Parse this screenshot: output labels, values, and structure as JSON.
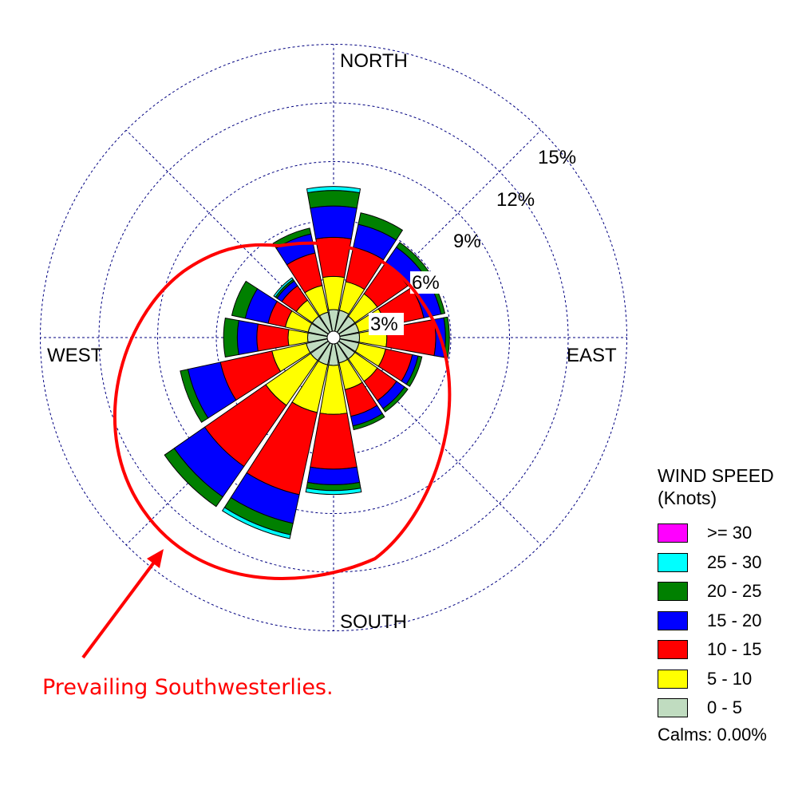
{
  "chart_data": {
    "type": "wind-rose (polar stacked bar)",
    "title": "",
    "directions": [
      "N",
      "NNE",
      "NE",
      "ENE",
      "E",
      "ESE",
      "SE",
      "SSE",
      "S",
      "SSW",
      "SW",
      "WSW",
      "W",
      "WNW",
      "NW",
      "NNW"
    ],
    "radial_ticks": [
      "3%",
      "6%",
      "9%",
      "12%",
      "15%"
    ],
    "radial_max_percent": 15,
    "compass_labels": {
      "north": "NORTH",
      "south": "SOUTH",
      "east": "EAST",
      "west": "WEST"
    },
    "speed_bins": [
      "0 - 5",
      "5 - 10",
      "10 - 15",
      "15 - 20",
      "20 - 25",
      "25 - 30",
      ">= 30"
    ],
    "cumulative_percent": [
      [
        1.1,
        2.8,
        4.8,
        6.4,
        7.2,
        7.4,
        7.4
      ],
      [
        1.1,
        2.6,
        4.4,
        5.6,
        6.2,
        6.2,
        6.2
      ],
      [
        1.0,
        2.4,
        4.3,
        5.3,
        5.6,
        5.6,
        5.6
      ],
      [
        1.0,
        2.4,
        4.4,
        5.3,
        5.5,
        5.5,
        5.5
      ],
      [
        1.0,
        2.4,
        4.9,
        5.4,
        5.6,
        5.6,
        5.6
      ],
      [
        1.0,
        2.4,
        3.8,
        4.1,
        4.3,
        4.3,
        4.3
      ],
      [
        1.0,
        2.4,
        3.6,
        4.1,
        4.3,
        4.3,
        4.3
      ],
      [
        1.0,
        2.4,
        3.8,
        4.3,
        4.5,
        4.5,
        4.5
      ],
      [
        1.1,
        3.6,
        6.4,
        7.2,
        7.5,
        7.7,
        7.7
      ],
      [
        1.1,
        3.6,
        7.9,
        9.4,
        10.0,
        10.2,
        10.2
      ],
      [
        1.1,
        3.9,
        7.7,
        9.6,
        10.2,
        10.2,
        10.2
      ],
      [
        1.1,
        2.9,
        5.6,
        7.3,
        7.7,
        7.7,
        7.7
      ],
      [
        1.0,
        2.0,
        3.6,
        4.6,
        5.3,
        5.3,
        5.3
      ],
      [
        1.0,
        2.2,
        3.1,
        4.3,
        5.0,
        5.0,
        5.0
      ],
      [
        1.0,
        2.0,
        2.9,
        3.2,
        3.3,
        3.4,
        3.4
      ],
      [
        1.0,
        2.4,
        4.1,
        5.1,
        5.4,
        5.4,
        5.4
      ]
    ],
    "legend": {
      "title": "WIND SPEED",
      "subtitle": "(Knots)",
      "position": "bottom-right",
      "entries": [
        {
          "label": ">= 30",
          "color": "#ff00ff"
        },
        {
          "label": "25 - 30",
          "color": "#00ffff"
        },
        {
          "label": "20 - 25",
          "color": "#008000"
        },
        {
          "label": "15 - 20",
          "color": "#0000ff"
        },
        {
          "label": "10 - 15",
          "color": "#ff0000"
        },
        {
          "label": "5 - 10",
          "color": "#ffff00"
        },
        {
          "label": "0 - 5",
          "color": "#c0dcc0"
        }
      ]
    },
    "calms": "Calms: 0.00%",
    "annotation": "Prevailing Southwesterlies.",
    "grid": true
  },
  "bin_colors": [
    "#c0dcc0",
    "#ffff00",
    "#ff0000",
    "#0000ff",
    "#008000",
    "#00ffff",
    "#ff00ff"
  ],
  "grid_color": "#000080",
  "annotation_color": "#ff0000",
  "legend": {
    "title": "WIND SPEED",
    "subtitle": "(Knots)",
    "entries": [
      {
        "label": ">= 30",
        "color": "#ff00ff"
      },
      {
        "label": "25 - 30",
        "color": "#00ffff"
      },
      {
        "label": "20 - 25",
        "color": "#008000"
      },
      {
        "label": "15 - 20",
        "color": "#0000ff"
      },
      {
        "label": "10 - 15",
        "color": "#ff0000"
      },
      {
        "label": "5 - 10",
        "color": "#ffff00"
      },
      {
        "label": "0 - 5",
        "color": "#c0dcc0"
      }
    ],
    "calms": "Calms: 0.00%"
  },
  "annotation": "Prevailing Southwesterlies."
}
